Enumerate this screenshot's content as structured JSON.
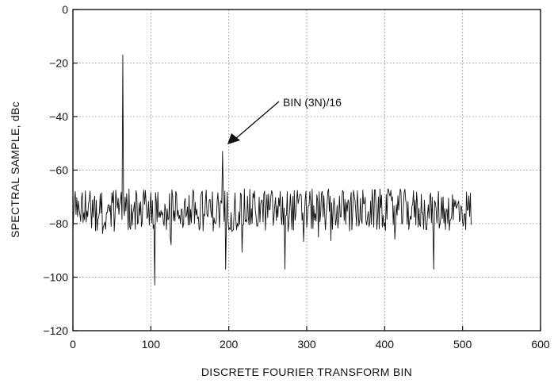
{
  "chart_data": {
    "type": "line",
    "title": "",
    "xlabel": "DISCRETE FOURIER TRANSFORM BIN",
    "ylabel": "SPECTRAL SAMPLE, dBc",
    "xlim": [
      0,
      600
    ],
    "ylim": [
      -120,
      0
    ],
    "xticks": [
      0,
      100,
      200,
      300,
      400,
      500,
      600
    ],
    "yticks": [
      0,
      -20,
      -40,
      -60,
      -80,
      -100,
      -120
    ],
    "grid": true,
    "annotation": {
      "text": "BIN (3N)/16",
      "x": 192,
      "y": -53
    },
    "spikes": [
      {
        "x": 64,
        "y": -17
      },
      {
        "x": 192,
        "y": -53
      }
    ],
    "notable_dips": [
      {
        "x": 105,
        "y": -103
      },
      {
        "x": 196,
        "y": -97
      },
      {
        "x": 272,
        "y": -97
      },
      {
        "x": 463,
        "y": -97
      }
    ],
    "noise_floor": {
      "x_start": 0,
      "x_end": 511,
      "typical_min": -83,
      "typical_max": -67
    },
    "colors": {
      "line": "#111111",
      "grid": "#9a9a9a",
      "background": "#ffffff"
    }
  }
}
